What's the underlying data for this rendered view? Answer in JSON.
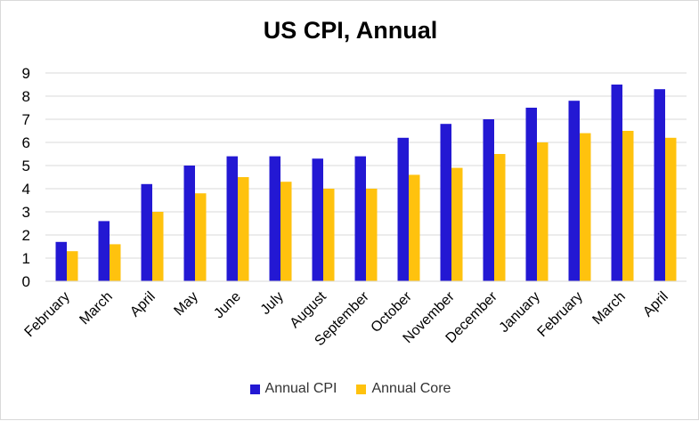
{
  "chart_data": {
    "type": "bar",
    "title": "US CPI, Annual",
    "xlabel": "",
    "ylabel": "",
    "ylim": [
      0,
      9
    ],
    "yticks": [
      0,
      1,
      2,
      3,
      4,
      5,
      6,
      7,
      8,
      9
    ],
    "grid": true,
    "legend_position": "bottom",
    "categories": [
      "February",
      "March",
      "April",
      "May",
      "June",
      "July",
      "August",
      "September",
      "October",
      "November",
      "December",
      "January",
      "February",
      "March",
      "April"
    ],
    "series": [
      {
        "name": "Annual CPI",
        "color": "#2318d3",
        "values": [
          1.7,
          2.6,
          4.2,
          5.0,
          5.4,
          5.4,
          5.3,
          5.4,
          6.2,
          6.8,
          7.0,
          7.5,
          7.8,
          8.5,
          8.3
        ]
      },
      {
        "name": "Annual Core",
        "color": "#ffc20e",
        "values": [
          1.3,
          1.6,
          3.0,
          3.8,
          4.5,
          4.3,
          4.0,
          4.0,
          4.6,
          4.9,
          5.5,
          6.0,
          6.4,
          6.5,
          6.2
        ]
      }
    ]
  }
}
